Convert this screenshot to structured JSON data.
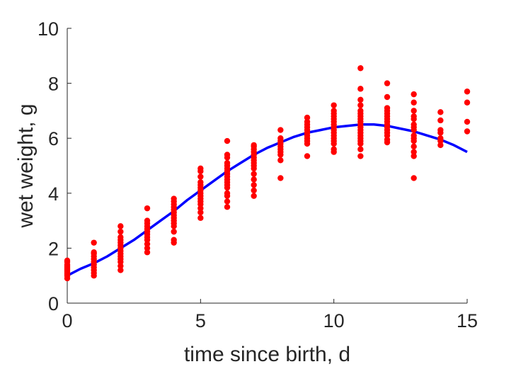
{
  "chart_data": {
    "type": "scatter",
    "title": "",
    "xlabel": "time since birth, d",
    "ylabel": "wet weight, g",
    "xlim": [
      0,
      15
    ],
    "ylim": [
      0,
      10
    ],
    "xticks": [
      0,
      5,
      10,
      15
    ],
    "yticks": [
      0,
      2,
      4,
      6,
      8,
      10
    ],
    "grid": false,
    "legend": "none",
    "series": [
      {
        "kind": "points",
        "color": "#ff0000",
        "points": [
          [
            0,
            0.9
          ],
          [
            0,
            1.0
          ],
          [
            0,
            1.05
          ],
          [
            0,
            1.1
          ],
          [
            0,
            1.15
          ],
          [
            0,
            1.2
          ],
          [
            0,
            1.25
          ],
          [
            0,
            1.3
          ],
          [
            0,
            1.35
          ],
          [
            0,
            1.4
          ],
          [
            0,
            1.5
          ],
          [
            0,
            1.55
          ],
          [
            1,
            1.0
          ],
          [
            1,
            1.1
          ],
          [
            1,
            1.2
          ],
          [
            1,
            1.3
          ],
          [
            1,
            1.4
          ],
          [
            1,
            1.5
          ],
          [
            1,
            1.6
          ],
          [
            1,
            1.7
          ],
          [
            1,
            1.8
          ],
          [
            1,
            1.85
          ],
          [
            1,
            2.2
          ],
          [
            2,
            1.2
          ],
          [
            2,
            1.35
          ],
          [
            2,
            1.5
          ],
          [
            2,
            1.6
          ],
          [
            2,
            1.7
          ],
          [
            2,
            1.8
          ],
          [
            2,
            1.9
          ],
          [
            2,
            2.0
          ],
          [
            2,
            2.1
          ],
          [
            2,
            2.2
          ],
          [
            2,
            2.3
          ],
          [
            2,
            2.4
          ],
          [
            2,
            2.6
          ],
          [
            2,
            2.8
          ],
          [
            3,
            1.85
          ],
          [
            3,
            2.0
          ],
          [
            3,
            2.15
          ],
          [
            3,
            2.3
          ],
          [
            3,
            2.4
          ],
          [
            3,
            2.5
          ],
          [
            3,
            2.6
          ],
          [
            3,
            2.7
          ],
          [
            3,
            2.8
          ],
          [
            3,
            2.9
          ],
          [
            3,
            3.0
          ],
          [
            3,
            3.45
          ],
          [
            4,
            2.2
          ],
          [
            4,
            2.3
          ],
          [
            4,
            2.6
          ],
          [
            4,
            2.8
          ],
          [
            4,
            2.9
          ],
          [
            4,
            3.0
          ],
          [
            4,
            3.1
          ],
          [
            4,
            3.2
          ],
          [
            4,
            3.3
          ],
          [
            4,
            3.4
          ],
          [
            4,
            3.5
          ],
          [
            4,
            3.6
          ],
          [
            4,
            3.7
          ],
          [
            4,
            3.8
          ],
          [
            5,
            3.1
          ],
          [
            5,
            3.3
          ],
          [
            5,
            3.45
          ],
          [
            5,
            3.6
          ],
          [
            5,
            3.7
          ],
          [
            5,
            3.8
          ],
          [
            5,
            3.9
          ],
          [
            5,
            4.0
          ],
          [
            5,
            4.1
          ],
          [
            5,
            4.2
          ],
          [
            5,
            4.3
          ],
          [
            5,
            4.4
          ],
          [
            5,
            4.6
          ],
          [
            5,
            4.8
          ],
          [
            5,
            4.9
          ],
          [
            6,
            3.5
          ],
          [
            6,
            3.7
          ],
          [
            6,
            3.9
          ],
          [
            6,
            4.0
          ],
          [
            6,
            4.2
          ],
          [
            6,
            4.3
          ],
          [
            6,
            4.4
          ],
          [
            6,
            4.5
          ],
          [
            6,
            4.6
          ],
          [
            6,
            4.7
          ],
          [
            6,
            4.8
          ],
          [
            6,
            4.9
          ],
          [
            6,
            5.0
          ],
          [
            6,
            5.1
          ],
          [
            6,
            5.3
          ],
          [
            6,
            5.4
          ],
          [
            6,
            5.9
          ],
          [
            7,
            3.9
          ],
          [
            7,
            4.1
          ],
          [
            7,
            4.3
          ],
          [
            7,
            4.5
          ],
          [
            7,
            4.7
          ],
          [
            7,
            4.9
          ],
          [
            7,
            5.0
          ],
          [
            7,
            5.1
          ],
          [
            7,
            5.2
          ],
          [
            7,
            5.3
          ],
          [
            7,
            5.4
          ],
          [
            7,
            5.5
          ],
          [
            7,
            5.6
          ],
          [
            7,
            5.7
          ],
          [
            7,
            5.75
          ],
          [
            8,
            4.55
          ],
          [
            8,
            5.2
          ],
          [
            8,
            5.4
          ],
          [
            8,
            5.5
          ],
          [
            8,
            5.6
          ],
          [
            8,
            5.7
          ],
          [
            8,
            5.8
          ],
          [
            8,
            5.9
          ],
          [
            8,
            6.0
          ],
          [
            8,
            6.3
          ],
          [
            9,
            5.35
          ],
          [
            9,
            5.8
          ],
          [
            9,
            5.9
          ],
          [
            9,
            6.0
          ],
          [
            9,
            6.1
          ],
          [
            9,
            6.2
          ],
          [
            9,
            6.3
          ],
          [
            9,
            6.4
          ],
          [
            9,
            6.5
          ],
          [
            9,
            6.6
          ],
          [
            9,
            6.75
          ],
          [
            10,
            5.5
          ],
          [
            10,
            5.6
          ],
          [
            10,
            5.8
          ],
          [
            10,
            5.9
          ],
          [
            10,
            6.0
          ],
          [
            10,
            6.1
          ],
          [
            10,
            6.2
          ],
          [
            10,
            6.3
          ],
          [
            10,
            6.4
          ],
          [
            10,
            6.5
          ],
          [
            10,
            6.6
          ],
          [
            10,
            6.7
          ],
          [
            10,
            6.8
          ],
          [
            10,
            6.9
          ],
          [
            10,
            7.0
          ],
          [
            10,
            7.2
          ],
          [
            11,
            5.35
          ],
          [
            11,
            5.6
          ],
          [
            11,
            5.8
          ],
          [
            11,
            5.9
          ],
          [
            11,
            6.0
          ],
          [
            11,
            6.1
          ],
          [
            11,
            6.2
          ],
          [
            11,
            6.3
          ],
          [
            11,
            6.4
          ],
          [
            11,
            6.5
          ],
          [
            11,
            6.6
          ],
          [
            11,
            6.7
          ],
          [
            11,
            6.8
          ],
          [
            11,
            6.9
          ],
          [
            11,
            7.0
          ],
          [
            11,
            7.2
          ],
          [
            11,
            7.4
          ],
          [
            11,
            7.8
          ],
          [
            11,
            8.55
          ],
          [
            12,
            5.85
          ],
          [
            12,
            5.95
          ],
          [
            12,
            6.1
          ],
          [
            12,
            6.2
          ],
          [
            12,
            6.3
          ],
          [
            12,
            6.4
          ],
          [
            12,
            6.5
          ],
          [
            12,
            6.6
          ],
          [
            12,
            6.7
          ],
          [
            12,
            6.8
          ],
          [
            12,
            6.9
          ],
          [
            12,
            7.0
          ],
          [
            12,
            7.1
          ],
          [
            12,
            7.5
          ],
          [
            12,
            8.0
          ],
          [
            13,
            4.55
          ],
          [
            13,
            5.35
          ],
          [
            13,
            5.5
          ],
          [
            13,
            5.7
          ],
          [
            13,
            5.9
          ],
          [
            13,
            6.0
          ],
          [
            13,
            6.1
          ],
          [
            13,
            6.3
          ],
          [
            13,
            6.4
          ],
          [
            13,
            6.5
          ],
          [
            13,
            6.7
          ],
          [
            13,
            6.8
          ],
          [
            13,
            7.0
          ],
          [
            13,
            7.3
          ],
          [
            13,
            7.6
          ],
          [
            14,
            5.75
          ],
          [
            14,
            5.9
          ],
          [
            14,
            6.0
          ],
          [
            14,
            6.2
          ],
          [
            14,
            6.3
          ],
          [
            14,
            6.65
          ],
          [
            14,
            6.95
          ],
          [
            15,
            6.25
          ],
          [
            15,
            6.6
          ],
          [
            15,
            7.3
          ],
          [
            15,
            7.7
          ]
        ]
      },
      {
        "kind": "line",
        "color": "#0000ff",
        "points": [
          [
            0,
            1.0
          ],
          [
            0.5,
            1.25
          ],
          [
            1,
            1.45
          ],
          [
            1.5,
            1.7
          ],
          [
            2,
            2.0
          ],
          [
            2.5,
            2.3
          ],
          [
            3,
            2.65
          ],
          [
            3.5,
            3.0
          ],
          [
            4,
            3.35
          ],
          [
            4.5,
            3.75
          ],
          [
            5,
            4.1
          ],
          [
            5.5,
            4.45
          ],
          [
            6,
            4.8
          ],
          [
            6.5,
            5.1
          ],
          [
            7,
            5.4
          ],
          [
            7.5,
            5.65
          ],
          [
            8,
            5.85
          ],
          [
            8.5,
            6.05
          ],
          [
            9,
            6.2
          ],
          [
            9.5,
            6.3
          ],
          [
            10,
            6.4
          ],
          [
            10.5,
            6.45
          ],
          [
            11,
            6.5
          ],
          [
            11.5,
            6.5
          ],
          [
            12,
            6.45
          ],
          [
            12.5,
            6.35
          ],
          [
            13,
            6.25
          ],
          [
            13.5,
            6.1
          ],
          [
            14,
            5.95
          ],
          [
            14.5,
            5.75
          ],
          [
            15,
            5.5
          ]
        ]
      }
    ]
  }
}
